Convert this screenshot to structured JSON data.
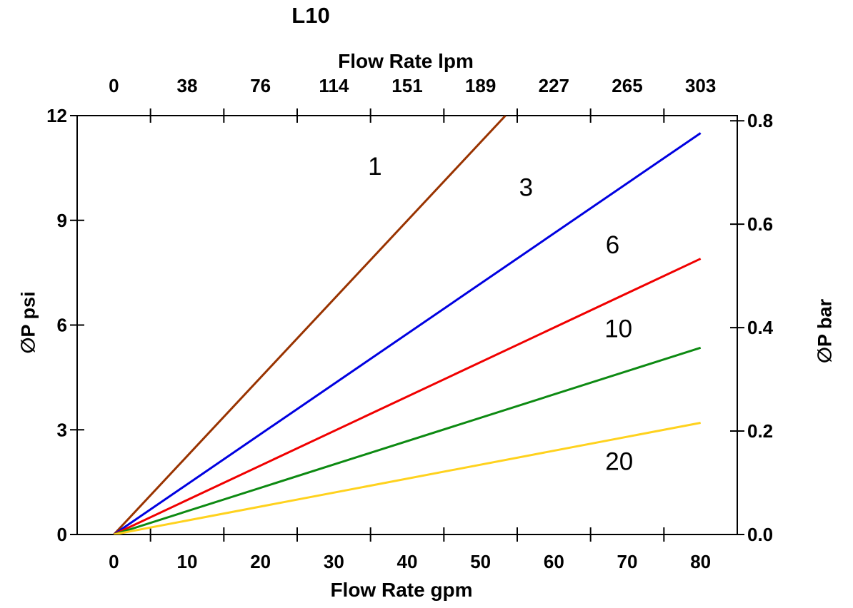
{
  "chart_data": {
    "type": "line",
    "title": "L10",
    "grid": false,
    "legend": "none (inline series labels)",
    "top_axis": {
      "label": "Flow Rate lpm",
      "tick_labels": [
        "0",
        "38",
        "76",
        "114",
        "151",
        "189",
        "227",
        "265",
        "303"
      ],
      "tick_label_positions_gpm": [
        0,
        10,
        20,
        30,
        40,
        50,
        60,
        70,
        80
      ]
    },
    "bottom_axis": {
      "label": "Flow Rate gpm",
      "tick_labels": [
        "0",
        "10",
        "20",
        "30",
        "40",
        "50",
        "60",
        "70",
        "80"
      ],
      "tick_label_positions_gpm": [
        0,
        10,
        20,
        30,
        40,
        50,
        60,
        70,
        80
      ],
      "tick_marks_gpm": [
        5,
        15,
        25,
        35,
        45,
        55,
        65,
        75
      ]
    },
    "left_axis": {
      "label": "∅P psi",
      "tick_labels": [
        "0",
        "3",
        "6",
        "9",
        "12"
      ],
      "tick_values": [
        0,
        3,
        6,
        9,
        12
      ],
      "range": [
        0,
        12
      ]
    },
    "right_axis": {
      "label": "∅P bar",
      "tick_labels": [
        "0.0",
        "0.2",
        "0.4",
        "0.6",
        "0.8"
      ],
      "tick_values": [
        0,
        0.2,
        0.4,
        0.6,
        0.8
      ],
      "range": [
        0,
        0.81
      ]
    },
    "xlim_gpm": [
      -5,
      85
    ],
    "frame_color": "#000000",
    "series": [
      {
        "name": "1",
        "color": "#993300",
        "points_gpm_psi": [
          [
            0,
            0
          ],
          [
            53.4,
            12
          ]
        ],
        "slope_psi_per_gpm": 0.225,
        "label_pos_gpm_psi": [
          35.6,
          10.55
        ]
      },
      {
        "name": "3",
        "color": "#0000E0",
        "points_gpm_psi": [
          [
            0,
            0
          ],
          [
            80,
            11.5
          ]
        ],
        "slope_psi_per_gpm": 0.144,
        "label_pos_gpm_psi": [
          56.2,
          9.95
        ]
      },
      {
        "name": "6",
        "color": "#F00000",
        "points_gpm_psi": [
          [
            0,
            0
          ],
          [
            80,
            7.9
          ]
        ],
        "slope_psi_per_gpm": 0.099,
        "label_pos_gpm_psi": [
          68.0,
          8.3
        ]
      },
      {
        "name": "10",
        "color": "#0D8A12",
        "points_gpm_psi": [
          [
            0,
            0
          ],
          [
            80,
            5.35
          ]
        ],
        "slope_psi_per_gpm": 0.067,
        "label_pos_gpm_psi": [
          68.8,
          5.9
        ]
      },
      {
        "name": "20",
        "color": "#FFD21E",
        "points_gpm_psi": [
          [
            0,
            0
          ],
          [
            80,
            3.2
          ]
        ],
        "slope_psi_per_gpm": 0.04,
        "label_pos_gpm_psi": [
          68.9,
          2.1
        ]
      }
    ]
  }
}
